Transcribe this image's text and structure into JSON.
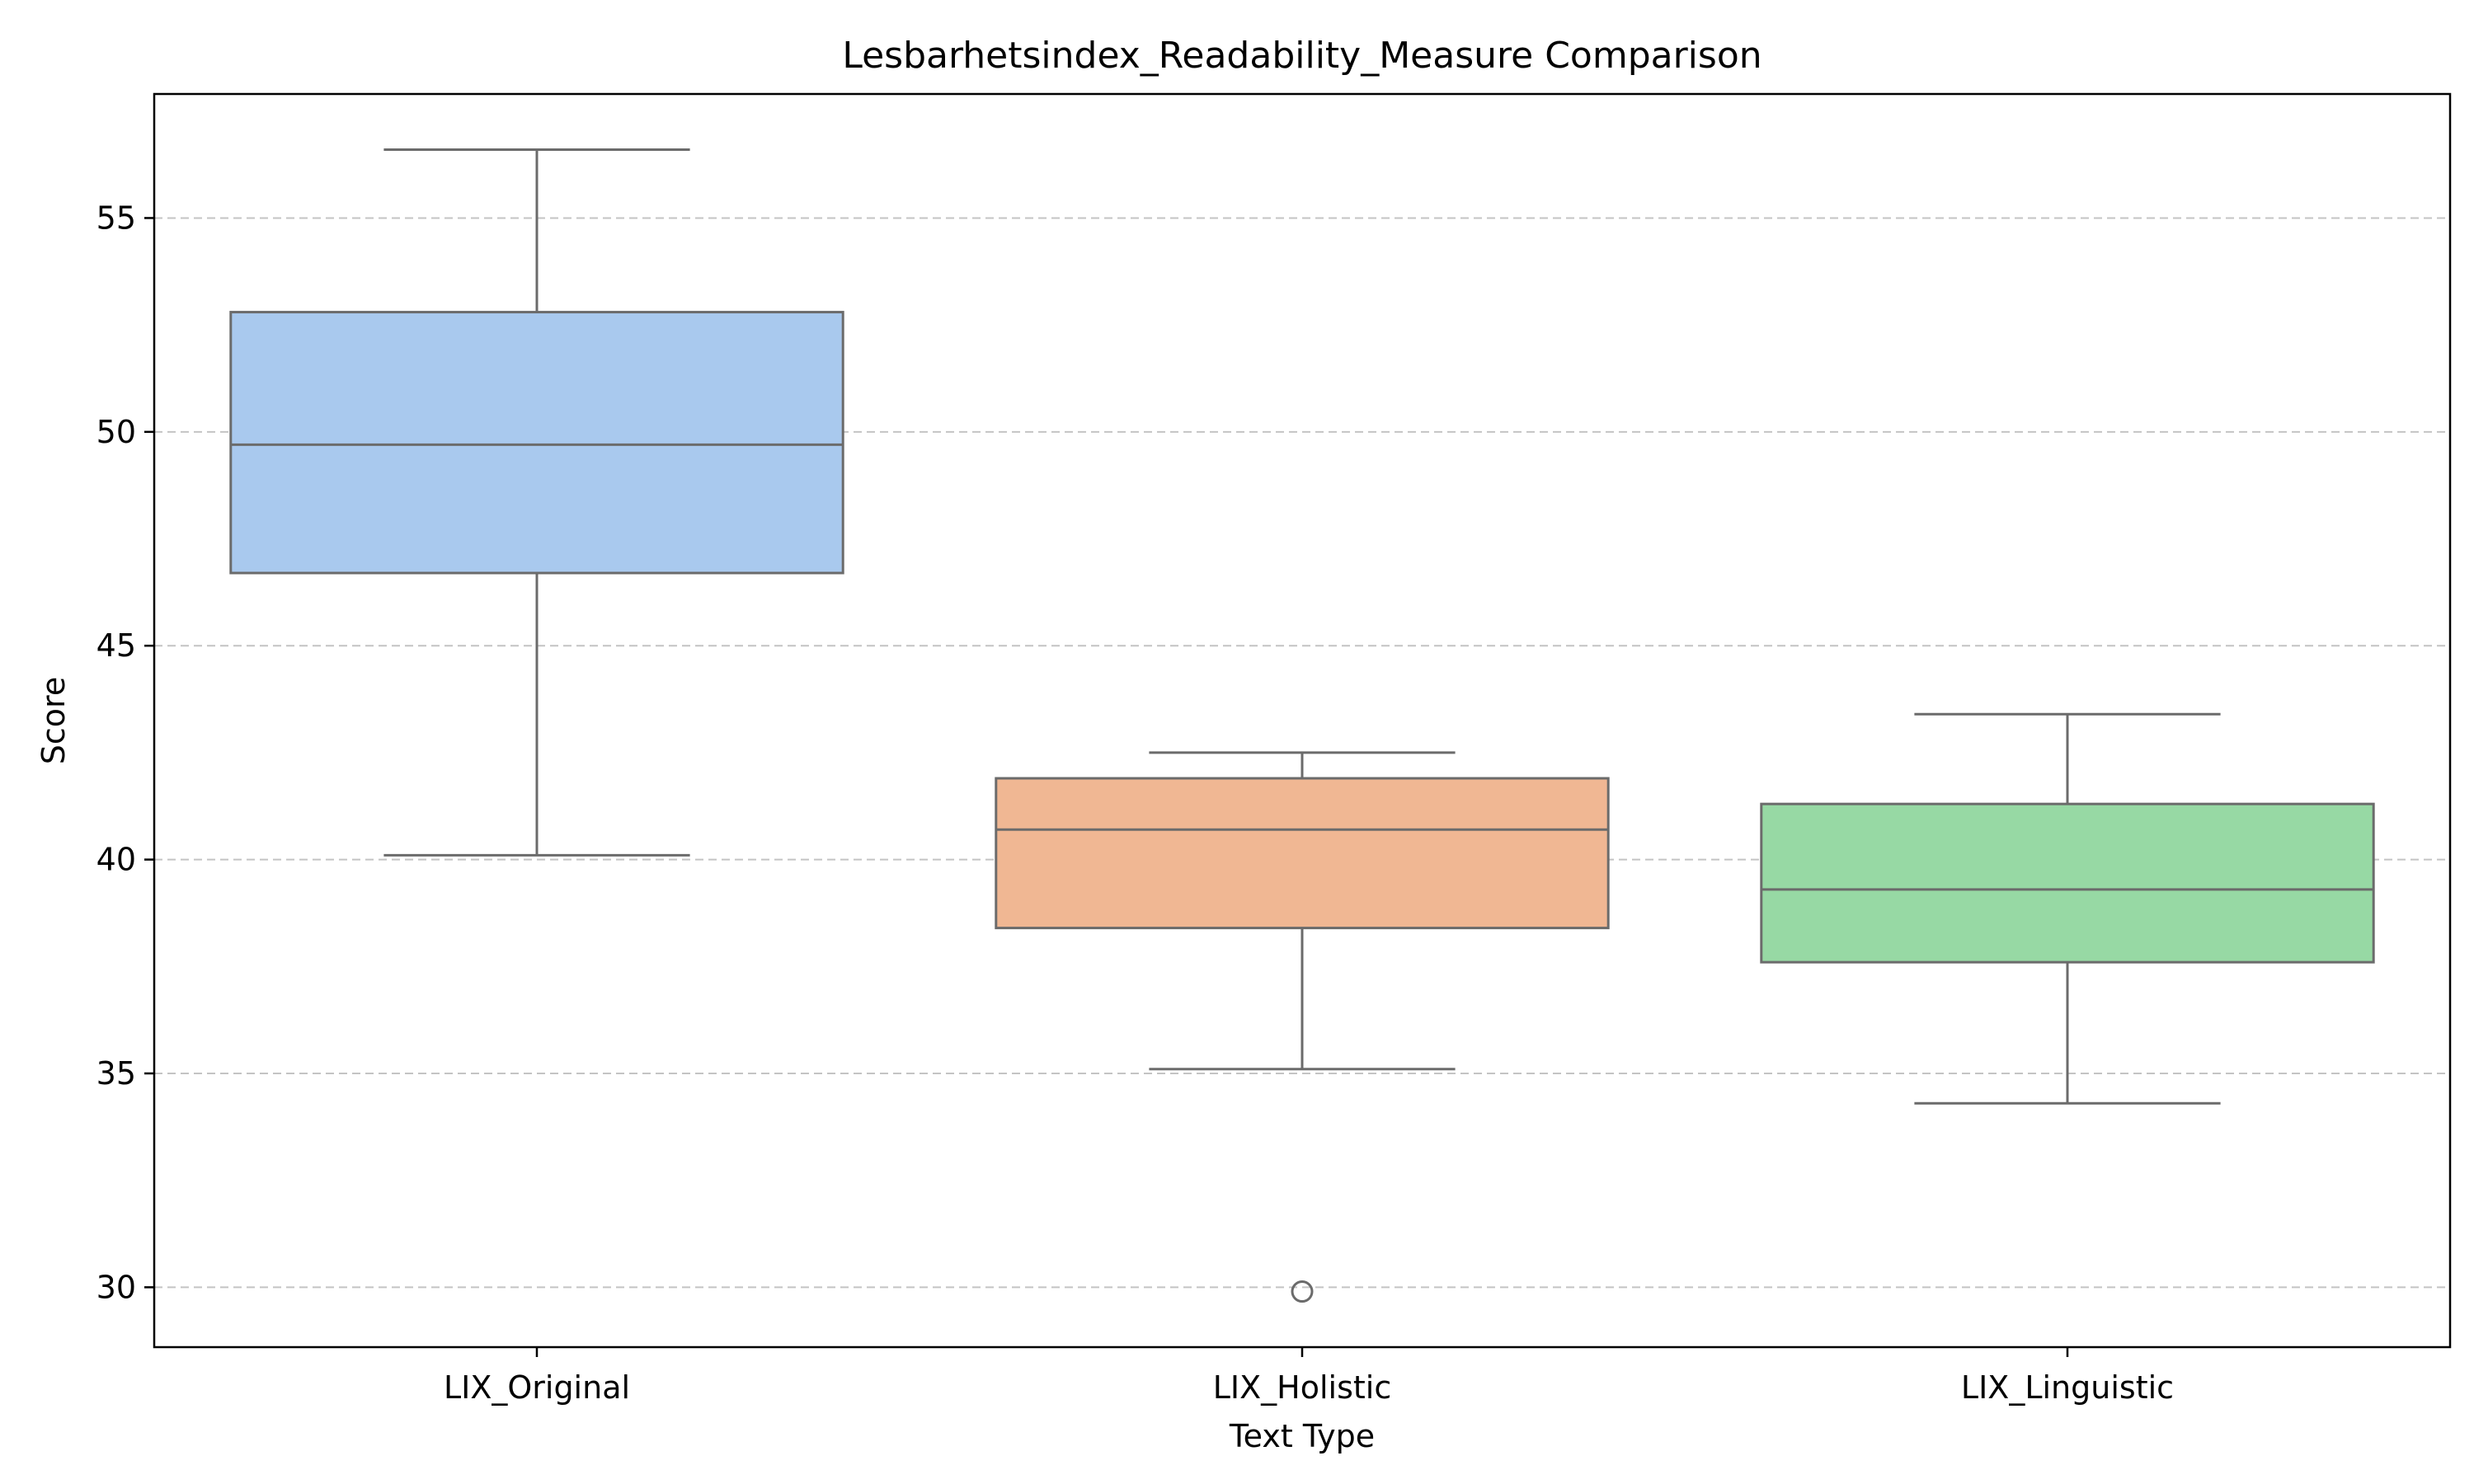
{
  "chart_data": {
    "type": "box",
    "title": "Lesbarhetsindex_Readability_Measure Comparison",
    "xlabel": "Text Type",
    "ylabel": "Score",
    "ylim": [
      28.6,
      57.9
    ],
    "yticks": [
      30,
      35,
      40,
      45,
      50,
      55
    ],
    "grid": "y-dashed",
    "categories": [
      "LIX_Original",
      "LIX_Holistic",
      "LIX_Linguistic"
    ],
    "boxes": [
      {
        "category": "LIX_Original",
        "whisker_low": 40.1,
        "q1": 46.7,
        "median": 49.7,
        "q3": 52.8,
        "whisker_high": 56.6,
        "outliers": [],
        "color": "#a9c9ee"
      },
      {
        "category": "LIX_Holistic",
        "whisker_low": 35.1,
        "q1": 38.4,
        "median": 40.7,
        "q3": 41.9,
        "whisker_high": 42.5,
        "outliers": [
          29.9
        ],
        "color": "#f0b793"
      },
      {
        "category": "LIX_Linguistic",
        "whisker_low": 34.3,
        "q1": 37.6,
        "median": 39.3,
        "q3": 41.3,
        "whisker_high": 43.4,
        "outliers": [],
        "color": "#97d9a4"
      }
    ],
    "line_color": "#6b6b6b"
  }
}
